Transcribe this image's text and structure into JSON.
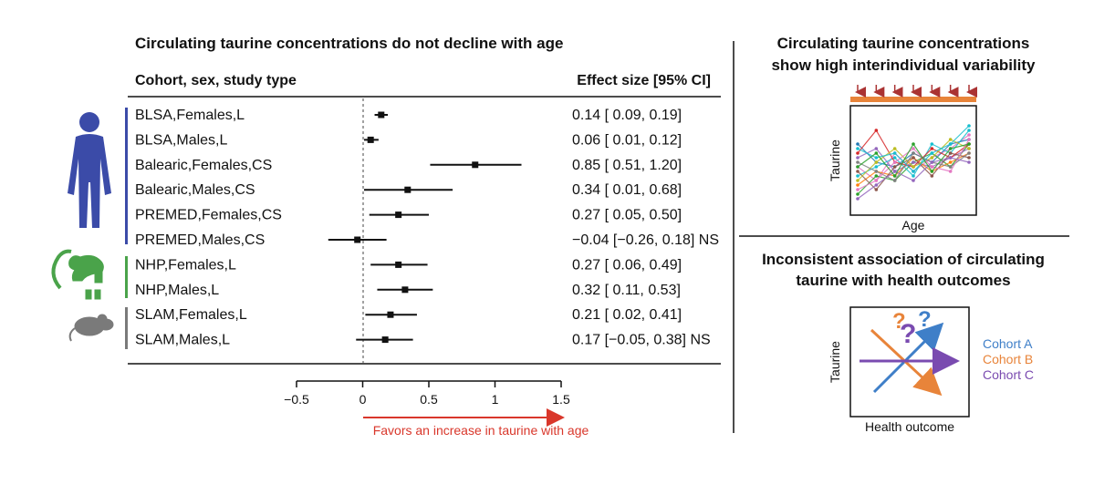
{
  "chart_data": [
    {
      "type": "forest",
      "title": "Circulating taurine concentrations do not decline with age",
      "row_header": "Cohort, sex, study type",
      "effect_header": "Effect size [95% CI]",
      "xlim": [
        -0.5,
        1.5
      ],
      "xticks": [
        "−0.5",
        "0",
        "0.5",
        "1",
        "1.5"
      ],
      "xtick_values": [
        -0.5,
        0,
        0.5,
        1,
        1.5
      ],
      "reference_line": 0,
      "arrow_label": "Favors an increase in taurine with age",
      "colors": {
        "human": "#3b4ba8",
        "nhp": "#4aa34a",
        "mouse": "#7a7a7a",
        "arrow": "#d9372b",
        "ci": "#111111"
      },
      "groups": [
        {
          "icon": "human-silhouette-icon",
          "rows": [
            0,
            5
          ]
        },
        {
          "icon": "monkey-silhouette-icon",
          "rows": [
            6,
            7
          ]
        },
        {
          "icon": "mouse-silhouette-icon",
          "rows": [
            8,
            9
          ]
        }
      ],
      "rows": [
        {
          "label": "BLSA,Females,L",
          "estimate": 0.14,
          "lower": 0.09,
          "upper": 0.19,
          "ci_text": "0.14 [ 0.09, 0.19]"
        },
        {
          "label": "BLSA,Males,L",
          "estimate": 0.06,
          "lower": 0.01,
          "upper": 0.12,
          "ci_text": "0.06 [ 0.01, 0.12]"
        },
        {
          "label": "Balearic,Females,CS",
          "estimate": 0.85,
          "lower": 0.51,
          "upper": 1.2,
          "ci_text": "0.85 [ 0.51, 1.20]"
        },
        {
          "label": "Balearic,Males,CS",
          "estimate": 0.34,
          "lower": 0.01,
          "upper": 0.68,
          "ci_text": "0.34 [ 0.01, 0.68]"
        },
        {
          "label": "PREMED,Females,CS",
          "estimate": 0.27,
          "lower": 0.05,
          "upper": 0.5,
          "ci_text": "0.27 [ 0.05, 0.50]"
        },
        {
          "label": "PREMED,Males,CS",
          "estimate": -0.04,
          "lower": -0.26,
          "upper": 0.18,
          "ci_text": "−0.04 [−0.26, 0.18] NS"
        },
        {
          "label": "NHP,Females,L",
          "estimate": 0.27,
          "lower": 0.06,
          "upper": 0.49,
          "ci_text": "0.27 [ 0.06, 0.49]"
        },
        {
          "label": "NHP,Males,L",
          "estimate": 0.32,
          "lower": 0.11,
          "upper": 0.53,
          "ci_text": "0.32 [ 0.11, 0.53]"
        },
        {
          "label": "SLAM,Females,L",
          "estimate": 0.21,
          "lower": 0.02,
          "upper": 0.41,
          "ci_text": "0.21 [ 0.02, 0.41]"
        },
        {
          "label": "SLAM,Males,L",
          "estimate": 0.17,
          "lower": -0.05,
          "upper": 0.38,
          "ci_text": "0.17 [−0.05, 0.38] NS"
        }
      ]
    },
    {
      "type": "line",
      "title_line1": "Circulating taurine concentrations",
      "title_line2": "show high interindividual variability",
      "xlabel": "Age",
      "ylabel": "Taurine",
      "n_timepoints": 7,
      "series_colors": [
        "#e377c2",
        "#1f77b4",
        "#2ca02c",
        "#9467bd",
        "#17becf",
        "#ff7f0e",
        "#d62728",
        "#8c564b",
        "#bcbd22",
        "#7f7f7f",
        "#e377c2",
        "#17becf",
        "#9467bd",
        "#2ca02c"
      ],
      "series": [
        [
          0.45,
          0.3,
          0.6,
          0.4,
          0.55,
          0.65,
          0.8
        ],
        [
          0.7,
          0.5,
          0.45,
          0.6,
          0.5,
          0.7,
          0.75
        ],
        [
          0.15,
          0.35,
          0.3,
          0.5,
          0.6,
          0.45,
          0.7
        ],
        [
          0.55,
          0.65,
          0.4,
          0.5,
          0.45,
          0.55,
          0.65
        ],
        [
          0.35,
          0.45,
          0.55,
          0.35,
          0.7,
          0.6,
          0.85
        ],
        [
          0.25,
          0.4,
          0.35,
          0.55,
          0.4,
          0.5,
          0.6
        ],
        [
          0.6,
          0.85,
          0.5,
          0.45,
          0.65,
          0.55,
          0.7
        ],
        [
          0.4,
          0.2,
          0.45,
          0.55,
          0.35,
          0.6,
          0.55
        ],
        [
          0.3,
          0.5,
          0.65,
          0.45,
          0.55,
          0.75,
          0.65
        ],
        [
          0.5,
          0.4,
          0.3,
          0.6,
          0.5,
          0.45,
          0.6
        ],
        [
          0.2,
          0.3,
          0.5,
          0.65,
          0.45,
          0.4,
          0.75
        ],
        [
          0.65,
          0.55,
          0.6,
          0.4,
          0.6,
          0.7,
          0.9
        ],
        [
          0.1,
          0.25,
          0.4,
          0.3,
          0.5,
          0.55,
          0.5
        ],
        [
          0.45,
          0.6,
          0.35,
          0.7,
          0.4,
          0.65,
          0.7
        ]
      ]
    },
    {
      "type": "diagram",
      "title_line1": "Inconsistent association of circulating",
      "title_line2": "taurine with health outcomes",
      "xlabel": "Health outcome",
      "ylabel": "Taurine",
      "question_marks": [
        "?",
        "?",
        "?"
      ],
      "legend": [
        {
          "label": "Cohort A",
          "color": "#3f7fc8",
          "slope": "positive"
        },
        {
          "label": "Cohort B",
          "color": "#e8843a",
          "slope": "negative"
        },
        {
          "label": "Cohort C",
          "color": "#7a4bb0",
          "slope": "flat"
        }
      ]
    }
  ]
}
